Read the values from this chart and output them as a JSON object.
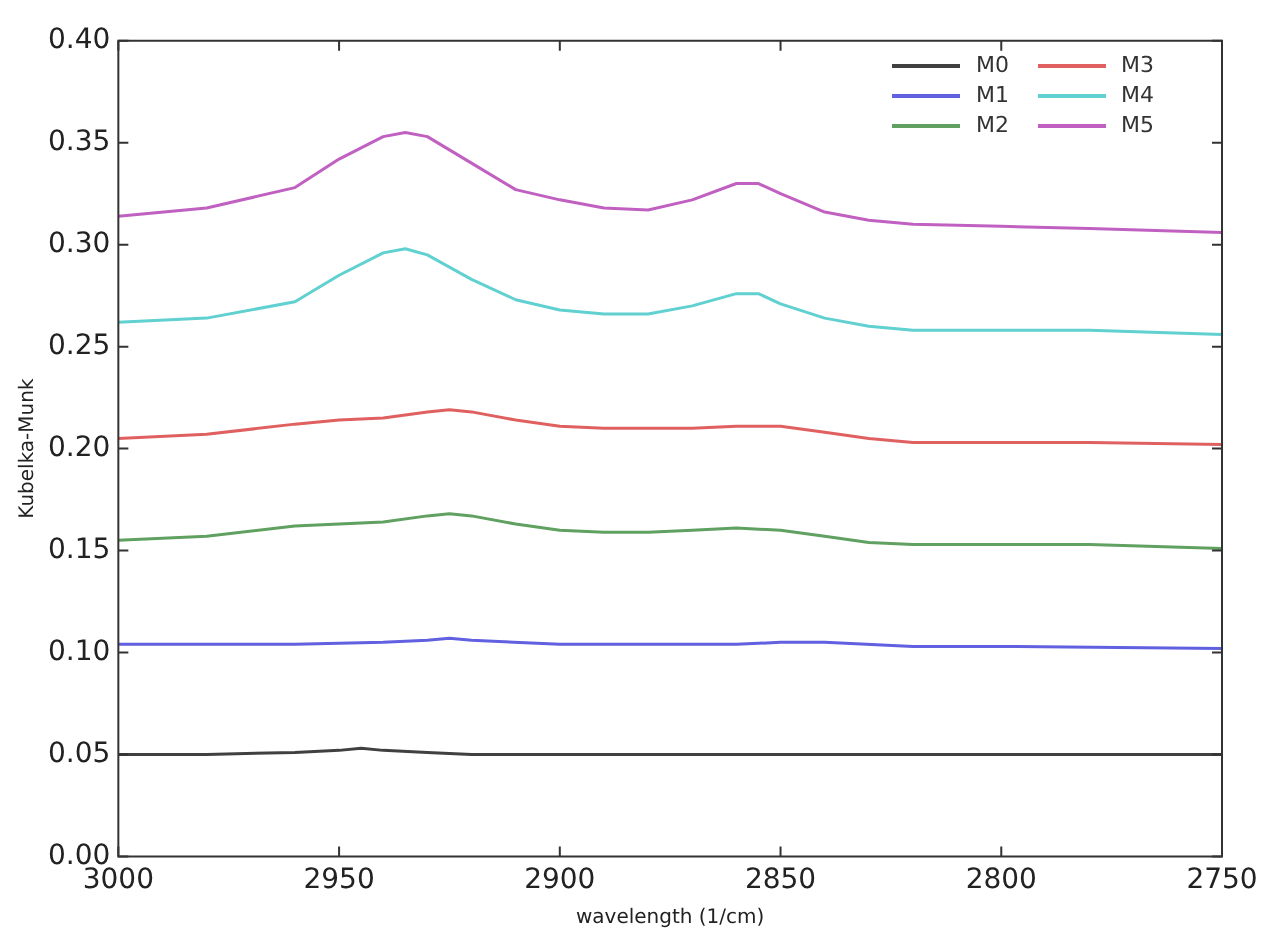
{
  "chart_data": {
    "type": "line",
    "xlabel": "wavelength (1/cm)",
    "ylabel": "Kubelka-Munk",
    "xlim": [
      3000,
      2750
    ],
    "xticks": [
      3000,
      2950,
      2900,
      2850,
      2800,
      2750
    ],
    "ylim": [
      0,
      0.4
    ],
    "yticks": [
      {
        "value": 0,
        "label": "0.00"
      },
      {
        "value": 0.05,
        "label": "0.05"
      },
      {
        "value": 0.1,
        "label": "0.10"
      },
      {
        "value": 0.15,
        "label": "0.15"
      },
      {
        "value": 0.2,
        "label": "0.20"
      },
      {
        "value": 0.25,
        "label": "0.25"
      },
      {
        "value": 0.3,
        "label": "0.30"
      },
      {
        "value": 0.35,
        "label": "0.35"
      },
      {
        "value": 0.4,
        "label": "0.40"
      }
    ],
    "grid": false,
    "legend": "top right",
    "marker": "none",
    "line_style": "solid",
    "series": [
      {
        "name": "M0",
        "color": "#404040",
        "x": [
          3000,
          2980,
          2960,
          2950,
          2945,
          2940,
          2930,
          2920,
          2900,
          2850,
          2800,
          2750
        ],
        "values": [
          0.05,
          0.05,
          0.051,
          0.052,
          0.053,
          0.052,
          0.051,
          0.05,
          0.05,
          0.05,
          0.05,
          0.05
        ]
      },
      {
        "name": "M1",
        "color": "#6060e0",
        "x": [
          3000,
          2980,
          2960,
          2940,
          2930,
          2925,
          2920,
          2900,
          2880,
          2860,
          2850,
          2840,
          2820,
          2800,
          2750
        ],
        "values": [
          0.104,
          0.104,
          0.104,
          0.105,
          0.106,
          0.107,
          0.106,
          0.104,
          0.104,
          0.104,
          0.105,
          0.105,
          0.103,
          0.103,
          0.102
        ]
      },
      {
        "name": "M2",
        "color": "#60a060",
        "x": [
          3000,
          2980,
          2960,
          2950,
          2940,
          2930,
          2925,
          2920,
          2910,
          2900,
          2890,
          2880,
          2870,
          2860,
          2850,
          2840,
          2830,
          2820,
          2800,
          2780,
          2750
        ],
        "values": [
          0.155,
          0.157,
          0.162,
          0.163,
          0.164,
          0.167,
          0.168,
          0.167,
          0.163,
          0.16,
          0.159,
          0.159,
          0.16,
          0.161,
          0.16,
          0.157,
          0.154,
          0.153,
          0.153,
          0.153,
          0.151
        ]
      },
      {
        "name": "M3",
        "color": "#e06060",
        "x": [
          3000,
          2980,
          2960,
          2950,
          2940,
          2930,
          2925,
          2920,
          2910,
          2900,
          2890,
          2880,
          2870,
          2860,
          2850,
          2840,
          2830,
          2820,
          2800,
          2780,
          2750
        ],
        "values": [
          0.205,
          0.207,
          0.212,
          0.214,
          0.215,
          0.218,
          0.219,
          0.218,
          0.214,
          0.211,
          0.21,
          0.21,
          0.21,
          0.211,
          0.211,
          0.208,
          0.205,
          0.203,
          0.203,
          0.203,
          0.202
        ]
      },
      {
        "name": "M4",
        "color": "#60d0d0",
        "x": [
          3000,
          2980,
          2960,
          2950,
          2940,
          2935,
          2930,
          2920,
          2910,
          2900,
          2890,
          2880,
          2870,
          2860,
          2855,
          2850,
          2840,
          2830,
          2820,
          2800,
          2780,
          2750
        ],
        "values": [
          0.262,
          0.264,
          0.272,
          0.285,
          0.296,
          0.298,
          0.295,
          0.283,
          0.273,
          0.268,
          0.266,
          0.266,
          0.27,
          0.276,
          0.276,
          0.271,
          0.264,
          0.26,
          0.258,
          0.258,
          0.258,
          0.256
        ]
      },
      {
        "name": "M5",
        "color": "#c060c0",
        "x": [
          3000,
          2980,
          2960,
          2950,
          2940,
          2935,
          2930,
          2920,
          2910,
          2900,
          2890,
          2880,
          2870,
          2860,
          2855,
          2850,
          2840,
          2830,
          2820,
          2800,
          2780,
          2750
        ],
        "values": [
          0.314,
          0.318,
          0.328,
          0.342,
          0.353,
          0.355,
          0.353,
          0.34,
          0.327,
          0.322,
          0.318,
          0.317,
          0.322,
          0.33,
          0.33,
          0.325,
          0.316,
          0.312,
          0.31,
          0.309,
          0.308,
          0.306
        ]
      }
    ]
  }
}
